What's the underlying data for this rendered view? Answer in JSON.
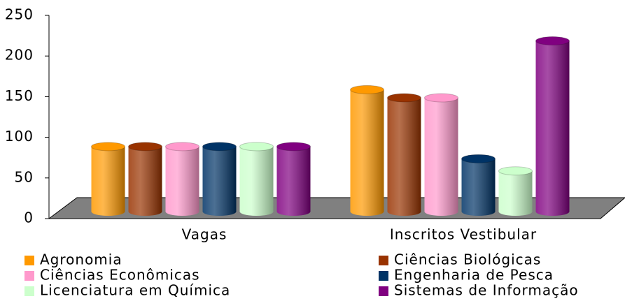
{
  "chart_data": {
    "type": "bar3d",
    "categories": [
      "Vagas",
      "Inscritos Vestibular"
    ],
    "series": [
      {
        "name": "Agronomia",
        "color": "#ff9900",
        "values": [
          80,
          150
        ]
      },
      {
        "name": "Ciências Biológicas",
        "color": "#993300",
        "values": [
          80,
          140
        ]
      },
      {
        "name": "Ciências Econômicas",
        "color": "#ff99cc",
        "values": [
          80,
          140
        ]
      },
      {
        "name": "Engenharia de Pesca",
        "color": "#003366",
        "values": [
          80,
          65
        ]
      },
      {
        "name": "Licenciatura em Química",
        "color": "#ccffcc",
        "values": [
          80,
          50
        ]
      },
      {
        "name": "Sistemas de Informação",
        "color": "#800080",
        "values": [
          80,
          210
        ]
      }
    ],
    "ylim": [
      0,
      250
    ],
    "yticks": [
      0,
      50,
      100,
      150,
      200,
      250
    ],
    "legend": "bottom"
  }
}
